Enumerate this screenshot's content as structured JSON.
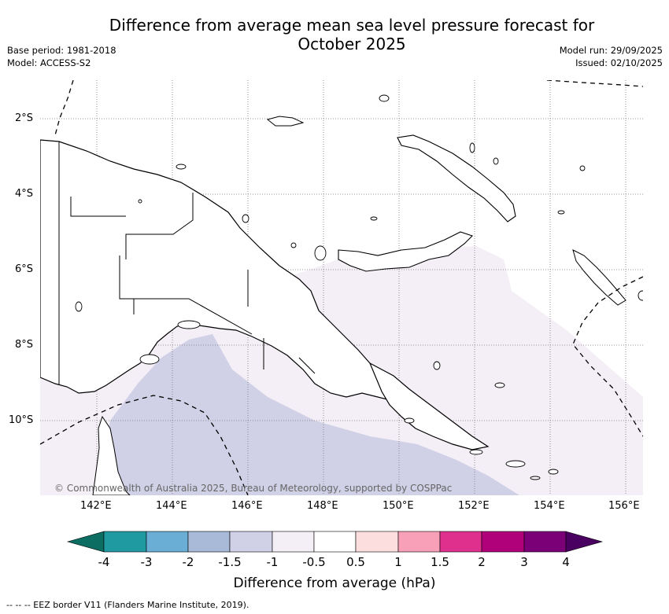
{
  "title": "Difference from average mean sea level pressure forecast for October 2025",
  "meta": {
    "base_period": "Base period: 1981-2018",
    "model": "Model: ACCESS-S2",
    "model_run": "Model run: 29/09/2025",
    "issued": "Issued: 02/10/2025"
  },
  "map": {
    "lat_labels": [
      "2°S",
      "4°S",
      "6°S",
      "8°S",
      "10°S"
    ],
    "lon_labels": [
      "142°E",
      "144°E",
      "146°E",
      "148°E",
      "150°E",
      "152°E",
      "154°E",
      "156°E"
    ],
    "copyright": "© Commonwealth of Australia 2025, Bureau of Meteorology, supported by COSPPac",
    "shading": {
      "lavender_class": "-1 to -0.5 hPa",
      "blue_grey_class": "-1.5 to -1 hPa"
    }
  },
  "colorbar": {
    "ticks": [
      "-4",
      "-3",
      "-2",
      "-1.5",
      "-1",
      "-0.5",
      "0.5",
      "1",
      "1.5",
      "2",
      "3",
      "4"
    ],
    "colors": [
      "#0c6e62",
      "#1f9aa0",
      "#6aaed6",
      "#a8bad8",
      "#d0d0e6",
      "#f4eef6",
      "#ffffff",
      "#fddede",
      "#f8a0b8",
      "#e0308e",
      "#b0007a",
      "#7b0078",
      "#4a0060"
    ],
    "title": "Difference from average (hPa)"
  },
  "footer": "--  --  -- EEZ border V11 (Flanders Marine Institute, 2019)."
}
